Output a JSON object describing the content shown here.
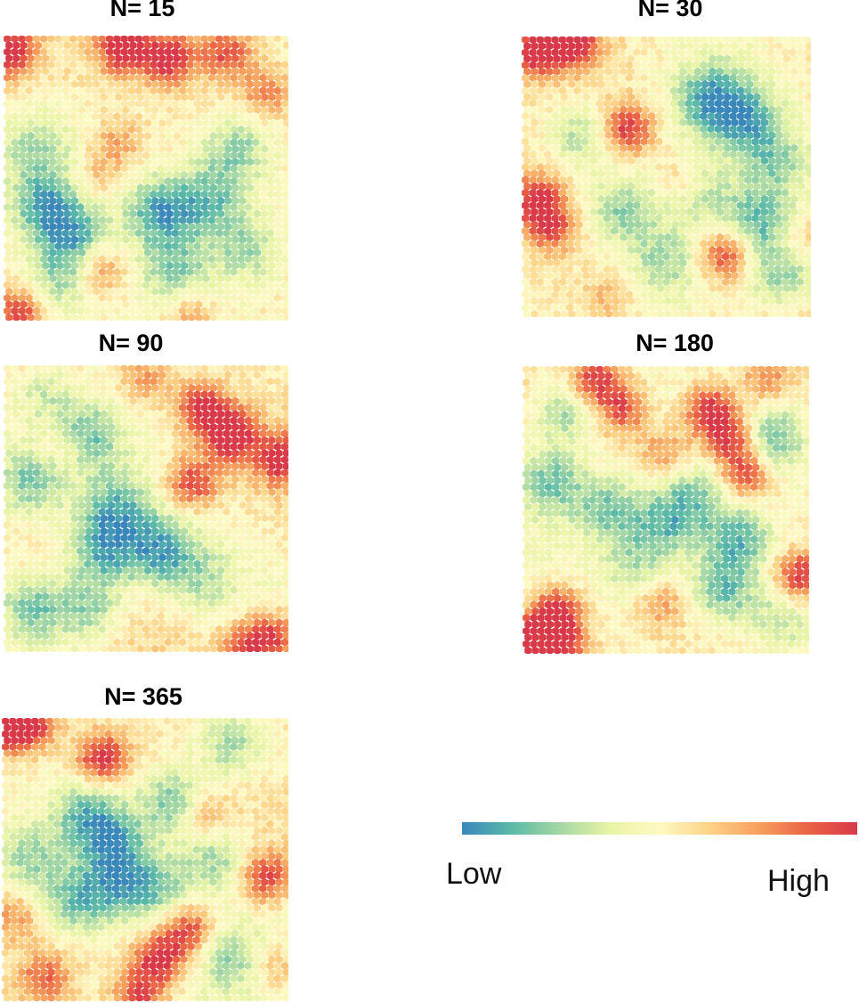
{
  "chart_data": {
    "type": "heatmap",
    "cell_shape": "hexagon",
    "panels": [
      {
        "id": "n15",
        "title": "N= 15",
        "seed": 15,
        "hotspots": [
          [
            0.02,
            0.06,
            1.0
          ],
          [
            0.42,
            0.04,
            1.0
          ],
          [
            0.58,
            0.08,
            0.9
          ],
          [
            0.78,
            0.06,
            0.7
          ],
          [
            0.92,
            0.2,
            0.5
          ],
          [
            0.4,
            0.38,
            0.4
          ],
          [
            0.32,
            0.5,
            0.3
          ],
          [
            0.34,
            0.82,
            0.5
          ],
          [
            0.05,
            0.98,
            0.8
          ],
          [
            0.65,
            0.98,
            0.4
          ]
        ],
        "coldspots": [
          [
            0.15,
            0.6,
            0.9
          ],
          [
            0.25,
            0.7,
            0.8
          ],
          [
            0.55,
            0.62,
            1.0
          ],
          [
            0.72,
            0.58,
            0.8
          ],
          [
            0.82,
            0.4,
            0.7
          ],
          [
            0.6,
            0.82,
            0.7
          ],
          [
            0.2,
            0.85,
            0.6
          ],
          [
            0.85,
            0.75,
            0.6
          ],
          [
            0.12,
            0.4,
            0.5
          ]
        ]
      },
      {
        "id": "n30",
        "title": "N= 30",
        "seed": 30,
        "hotspots": [
          [
            0.05,
            0.05,
            1.0
          ],
          [
            0.18,
            0.02,
            0.9
          ],
          [
            0.36,
            0.33,
            0.9
          ],
          [
            0.05,
            0.58,
            0.8
          ],
          [
            0.1,
            0.68,
            0.7
          ],
          [
            0.7,
            0.78,
            0.8
          ],
          [
            0.56,
            0.52,
            0.5
          ],
          [
            0.96,
            0.72,
            0.3
          ],
          [
            0.3,
            0.94,
            0.3
          ]
        ],
        "coldspots": [
          [
            0.65,
            0.22,
            1.0
          ],
          [
            0.78,
            0.3,
            0.9
          ],
          [
            0.22,
            0.35,
            0.7
          ],
          [
            0.35,
            0.62,
            0.7
          ],
          [
            0.6,
            0.55,
            0.7
          ],
          [
            0.82,
            0.66,
            0.9
          ],
          [
            0.9,
            0.85,
            0.8
          ],
          [
            0.5,
            0.8,
            0.6
          ],
          [
            0.88,
            0.45,
            0.6
          ]
        ]
      },
      {
        "id": "n90",
        "title": "N= 90",
        "seed": 90,
        "hotspots": [
          [
            0.8,
            0.25,
            1.0
          ],
          [
            0.7,
            0.15,
            0.9
          ],
          [
            0.98,
            0.33,
            0.9
          ],
          [
            0.66,
            0.41,
            0.8
          ],
          [
            0.95,
            0.95,
            0.8
          ],
          [
            0.85,
            0.98,
            0.7
          ],
          [
            0.5,
            0.05,
            0.4
          ],
          [
            0.2,
            0.3,
            0.3
          ]
        ],
        "coldspots": [
          [
            0.3,
            0.25,
            0.8
          ],
          [
            0.4,
            0.5,
            0.8
          ],
          [
            0.35,
            0.65,
            0.9
          ],
          [
            0.55,
            0.65,
            1.0
          ],
          [
            0.1,
            0.4,
            0.8
          ],
          [
            0.1,
            0.85,
            0.8
          ],
          [
            0.3,
            0.85,
            0.7
          ],
          [
            0.7,
            0.75,
            0.5
          ],
          [
            0.15,
            0.1,
            0.5
          ]
        ]
      },
      {
        "id": "n180",
        "title": "N= 180",
        "seed": 180,
        "hotspots": [
          [
            0.25,
            0.05,
            0.9
          ],
          [
            0.35,
            0.15,
            0.7
          ],
          [
            0.65,
            0.15,
            0.9
          ],
          [
            0.72,
            0.25,
            0.9
          ],
          [
            0.78,
            0.38,
            0.8
          ],
          [
            0.5,
            0.3,
            0.5
          ],
          [
            0.12,
            0.85,
            0.9
          ],
          [
            0.03,
            0.95,
            1.0
          ],
          [
            0.15,
            0.97,
            0.7
          ],
          [
            0.97,
            0.73,
            0.9
          ],
          [
            0.48,
            0.82,
            0.4
          ],
          [
            0.85,
            0.05,
            0.5
          ]
        ],
        "coldspots": [
          [
            0.15,
            0.15,
            0.8
          ],
          [
            0.1,
            0.4,
            0.9
          ],
          [
            0.3,
            0.5,
            0.8
          ],
          [
            0.5,
            0.55,
            0.8
          ],
          [
            0.75,
            0.6,
            0.9
          ],
          [
            0.88,
            0.25,
            0.8
          ],
          [
            0.7,
            0.78,
            0.9
          ],
          [
            0.6,
            0.45,
            0.6
          ],
          [
            0.4,
            0.7,
            0.6
          ],
          [
            0.9,
            0.88,
            0.5
          ]
        ]
      },
      {
        "id": "n365",
        "title": "N= 365",
        "seed": 365,
        "hotspots": [
          [
            0.02,
            0.03,
            1.0
          ],
          [
            0.1,
            0.02,
            0.8
          ],
          [
            0.35,
            0.14,
            0.9
          ],
          [
            0.92,
            0.56,
            0.8
          ],
          [
            0.55,
            0.85,
            0.9
          ],
          [
            0.65,
            0.75,
            0.8
          ],
          [
            0.48,
            0.98,
            0.8
          ],
          [
            0.15,
            0.92,
            0.6
          ],
          [
            0.7,
            0.35,
            0.4
          ],
          [
            0.95,
            0.88,
            0.4
          ],
          [
            0.05,
            0.7,
            0.4
          ]
        ],
        "coldspots": [
          [
            0.3,
            0.35,
            0.9
          ],
          [
            0.4,
            0.45,
            0.9
          ],
          [
            0.6,
            0.3,
            0.9
          ],
          [
            0.25,
            0.65,
            0.8
          ],
          [
            0.4,
            0.6,
            0.8
          ],
          [
            0.8,
            0.1,
            0.7
          ],
          [
            0.75,
            0.5,
            0.7
          ],
          [
            0.8,
            0.85,
            0.6
          ],
          [
            0.1,
            0.5,
            0.6
          ],
          [
            0.55,
            0.6,
            0.7
          ]
        ]
      }
    ],
    "colormap": [
      "#3A87BC",
      "#5AB9A8",
      "#A6D8A4",
      "#E9F4A6",
      "#FEF9C4",
      "#FDD387",
      "#F7A05D",
      "#EA6244",
      "#D93A4A"
    ],
    "legend": {
      "low_label": "Low",
      "high_label": "High"
    }
  }
}
